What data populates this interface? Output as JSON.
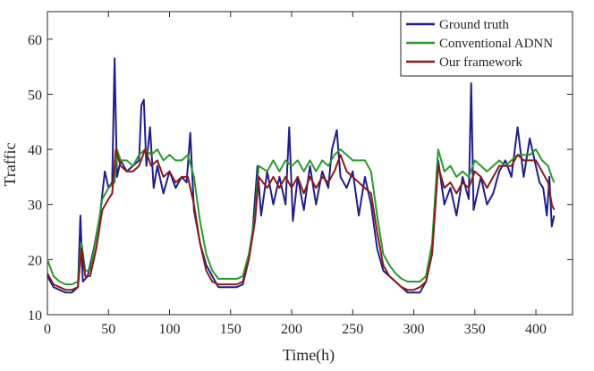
{
  "chart_data": {
    "type": "line",
    "title": "",
    "xlabel": "Time(h)",
    "ylabel": "Traffic",
    "xlim": [
      0,
      430
    ],
    "ylim": [
      10,
      65
    ],
    "xticks": [
      0,
      50,
      100,
      150,
      200,
      250,
      300,
      350,
      400
    ],
    "yticks": [
      10,
      20,
      30,
      40,
      50,
      60
    ],
    "grid": false,
    "legend_position": "top-right",
    "series": [
      {
        "name": "Ground truth",
        "color": "#1f1f8c",
        "anchors": [
          [
            0,
            17
          ],
          [
            5,
            15
          ],
          [
            10,
            14.5
          ],
          [
            15,
            14
          ],
          [
            20,
            14
          ],
          [
            25,
            15
          ],
          [
            27,
            28
          ],
          [
            29,
            16
          ],
          [
            33,
            17
          ],
          [
            38,
            22
          ],
          [
            43,
            28
          ],
          [
            47,
            36
          ],
          [
            50,
            33
          ],
          [
            53,
            34
          ],
          [
            55,
            56.5
          ],
          [
            57,
            35
          ],
          [
            60,
            38
          ],
          [
            65,
            36
          ],
          [
            70,
            37
          ],
          [
            75,
            38
          ],
          [
            77,
            48
          ],
          [
            79,
            49
          ],
          [
            81,
            37
          ],
          [
            84,
            44
          ],
          [
            87,
            33
          ],
          [
            90,
            37
          ],
          [
            95,
            32
          ],
          [
            100,
            36
          ],
          [
            105,
            33
          ],
          [
            110,
            35
          ],
          [
            114,
            34
          ],
          [
            117,
            43
          ],
          [
            120,
            29
          ],
          [
            125,
            23
          ],
          [
            130,
            19
          ],
          [
            135,
            17
          ],
          [
            140,
            15
          ],
          [
            145,
            15
          ],
          [
            150,
            15
          ],
          [
            155,
            15
          ],
          [
            160,
            15.5
          ],
          [
            165,
            20
          ],
          [
            168,
            25
          ],
          [
            172,
            37
          ],
          [
            175,
            28
          ],
          [
            180,
            36
          ],
          [
            185,
            30
          ],
          [
            190,
            35
          ],
          [
            195,
            30
          ],
          [
            198,
            44
          ],
          [
            201,
            27
          ],
          [
            205,
            35
          ],
          [
            210,
            29
          ],
          [
            215,
            37
          ],
          [
            220,
            30
          ],
          [
            225,
            36
          ],
          [
            230,
            33
          ],
          [
            233,
            40
          ],
          [
            237,
            43.5
          ],
          [
            240,
            35
          ],
          [
            245,
            33
          ],
          [
            250,
            36
          ],
          [
            255,
            28
          ],
          [
            260,
            35
          ],
          [
            265,
            30
          ],
          [
            270,
            22
          ],
          [
            275,
            18
          ],
          [
            280,
            17
          ],
          [
            285,
            16
          ],
          [
            290,
            15
          ],
          [
            295,
            14
          ],
          [
            300,
            14
          ],
          [
            305,
            14
          ],
          [
            310,
            16
          ],
          [
            315,
            21
          ],
          [
            320,
            38
          ],
          [
            325,
            30
          ],
          [
            330,
            33
          ],
          [
            335,
            28
          ],
          [
            340,
            35
          ],
          [
            345,
            31
          ],
          [
            347,
            52
          ],
          [
            349,
            29
          ],
          [
            355,
            35
          ],
          [
            360,
            30
          ],
          [
            365,
            32
          ],
          [
            370,
            36
          ],
          [
            375,
            38
          ],
          [
            380,
            35
          ],
          [
            385,
            44
          ],
          [
            390,
            35
          ],
          [
            395,
            42
          ],
          [
            400,
            37
          ],
          [
            403,
            34
          ],
          [
            406,
            33
          ],
          [
            409,
            28
          ],
          [
            411,
            35
          ],
          [
            413,
            26
          ],
          [
            415,
            28
          ]
        ]
      },
      {
        "name": "Conventional ADNN",
        "color": "#2a9b2a",
        "anchors": [
          [
            0,
            20
          ],
          [
            5,
            17
          ],
          [
            10,
            16
          ],
          [
            15,
            15.5
          ],
          [
            20,
            15.5
          ],
          [
            25,
            16
          ],
          [
            28,
            23
          ],
          [
            31,
            18
          ],
          [
            35,
            18
          ],
          [
            40,
            24
          ],
          [
            45,
            31
          ],
          [
            50,
            33
          ],
          [
            55,
            34
          ],
          [
            57,
            40
          ],
          [
            60,
            38
          ],
          [
            65,
            38
          ],
          [
            70,
            37
          ],
          [
            75,
            39
          ],
          [
            80,
            40
          ],
          [
            85,
            39
          ],
          [
            90,
            40
          ],
          [
            95,
            38
          ],
          [
            100,
            39
          ],
          [
            105,
            38
          ],
          [
            110,
            38
          ],
          [
            115,
            39
          ],
          [
            120,
            35
          ],
          [
            125,
            27
          ],
          [
            130,
            21
          ],
          [
            135,
            18
          ],
          [
            140,
            16.5
          ],
          [
            145,
            16.5
          ],
          [
            150,
            16.5
          ],
          [
            155,
            16.5
          ],
          [
            160,
            17
          ],
          [
            165,
            21
          ],
          [
            170,
            28
          ],
          [
            173,
            37
          ],
          [
            180,
            36
          ],
          [
            185,
            38
          ],
          [
            190,
            36
          ],
          [
            195,
            38
          ],
          [
            200,
            37
          ],
          [
            205,
            38
          ],
          [
            210,
            36
          ],
          [
            215,
            38
          ],
          [
            220,
            36
          ],
          [
            225,
            38
          ],
          [
            230,
            37
          ],
          [
            235,
            39
          ],
          [
            240,
            40
          ],
          [
            245,
            39
          ],
          [
            250,
            38
          ],
          [
            255,
            38
          ],
          [
            260,
            38
          ],
          [
            265,
            36
          ],
          [
            270,
            28
          ],
          [
            275,
            21
          ],
          [
            280,
            19
          ],
          [
            285,
            17.5
          ],
          [
            290,
            16.5
          ],
          [
            295,
            16
          ],
          [
            300,
            16
          ],
          [
            305,
            16
          ],
          [
            310,
            17
          ],
          [
            315,
            23
          ],
          [
            320,
            40
          ],
          [
            325,
            36
          ],
          [
            330,
            37
          ],
          [
            335,
            35
          ],
          [
            340,
            36
          ],
          [
            345,
            35
          ],
          [
            350,
            38
          ],
          [
            355,
            37
          ],
          [
            360,
            36
          ],
          [
            365,
            37
          ],
          [
            370,
            38
          ],
          [
            375,
            37
          ],
          [
            380,
            38
          ],
          [
            385,
            39
          ],
          [
            390,
            39
          ],
          [
            395,
            39
          ],
          [
            400,
            40
          ],
          [
            405,
            38
          ],
          [
            410,
            37
          ],
          [
            413,
            35
          ],
          [
            415,
            34
          ]
        ]
      },
      {
        "name": "Our framework",
        "color": "#8b1a1a",
        "anchors": [
          [
            0,
            17.5
          ],
          [
            5,
            15.5
          ],
          [
            10,
            15
          ],
          [
            15,
            14.5
          ],
          [
            20,
            14.5
          ],
          [
            25,
            15
          ],
          [
            28,
            22
          ],
          [
            31,
            17
          ],
          [
            35,
            17
          ],
          [
            40,
            22
          ],
          [
            45,
            29
          ],
          [
            50,
            31
          ],
          [
            53,
            32
          ],
          [
            56,
            40
          ],
          [
            60,
            37
          ],
          [
            65,
            36
          ],
          [
            70,
            36
          ],
          [
            75,
            37
          ],
          [
            80,
            40
          ],
          [
            85,
            37
          ],
          [
            90,
            38
          ],
          [
            95,
            35
          ],
          [
            100,
            36
          ],
          [
            105,
            34
          ],
          [
            110,
            35
          ],
          [
            115,
            35
          ],
          [
            120,
            30
          ],
          [
            125,
            23
          ],
          [
            130,
            18
          ],
          [
            135,
            16
          ],
          [
            140,
            15.5
          ],
          [
            145,
            15.5
          ],
          [
            150,
            15.5
          ],
          [
            155,
            15.5
          ],
          [
            160,
            16
          ],
          [
            165,
            20
          ],
          [
            170,
            27
          ],
          [
            173,
            35
          ],
          [
            180,
            33
          ],
          [
            185,
            35
          ],
          [
            190,
            33
          ],
          [
            195,
            35
          ],
          [
            200,
            33
          ],
          [
            205,
            35
          ],
          [
            210,
            32
          ],
          [
            215,
            35
          ],
          [
            220,
            33
          ],
          [
            225,
            35
          ],
          [
            230,
            34
          ],
          [
            235,
            36
          ],
          [
            240,
            39
          ],
          [
            245,
            36
          ],
          [
            250,
            35
          ],
          [
            255,
            34
          ],
          [
            260,
            33
          ],
          [
            265,
            32
          ],
          [
            270,
            25
          ],
          [
            275,
            19
          ],
          [
            280,
            17
          ],
          [
            285,
            16
          ],
          [
            290,
            15
          ],
          [
            295,
            14.5
          ],
          [
            300,
            14.5
          ],
          [
            305,
            15
          ],
          [
            310,
            16
          ],
          [
            315,
            21
          ],
          [
            320,
            37
          ],
          [
            325,
            33
          ],
          [
            330,
            34
          ],
          [
            335,
            32
          ],
          [
            340,
            34
          ],
          [
            345,
            33
          ],
          [
            350,
            36
          ],
          [
            355,
            35
          ],
          [
            360,
            33
          ],
          [
            365,
            35
          ],
          [
            370,
            37
          ],
          [
            375,
            37
          ],
          [
            380,
            37
          ],
          [
            385,
            39
          ],
          [
            390,
            38
          ],
          [
            395,
            38
          ],
          [
            400,
            38
          ],
          [
            405,
            36
          ],
          [
            410,
            34
          ],
          [
            413,
            30
          ],
          [
            415,
            29
          ]
        ]
      }
    ]
  }
}
